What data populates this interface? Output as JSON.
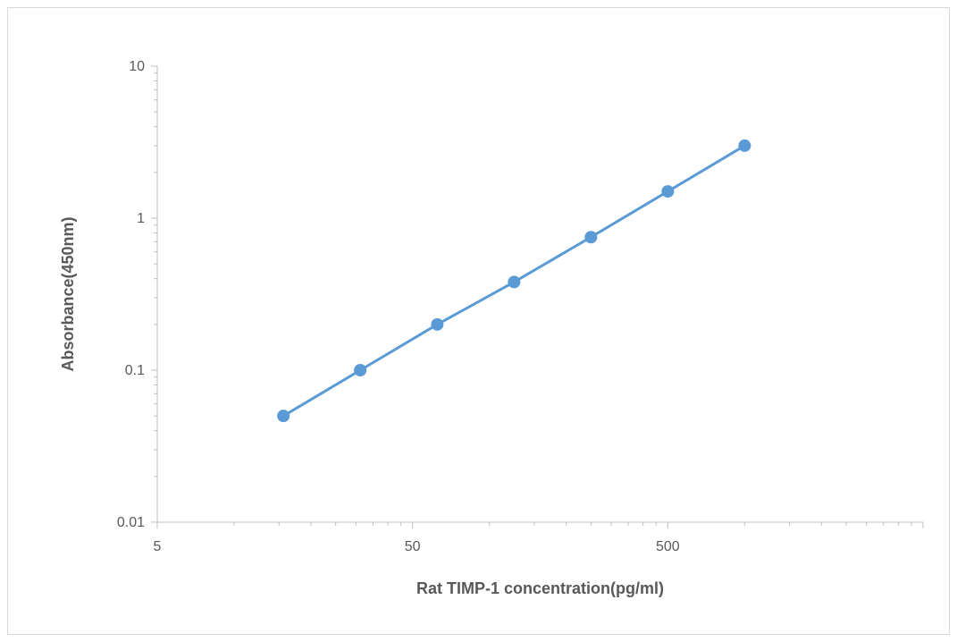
{
  "chart_data": {
    "type": "line",
    "xlabel": "Rat TIMP-1 concentration(pg/ml)",
    "ylabel": "Absorbance(450nm)",
    "x_scale": "log",
    "y_scale": "log",
    "xlim": [
      5,
      5000
    ],
    "ylim": [
      0.01,
      10
    ],
    "x_ticks": [
      5,
      50,
      500
    ],
    "x_tick_labels": [
      "5",
      "50",
      "500"
    ],
    "y_ticks": [
      0.01,
      0.1,
      1,
      10
    ],
    "y_tick_labels": [
      "0.01",
      "0.1",
      "1",
      "10"
    ],
    "grid": false,
    "legend": "none",
    "series": [
      {
        "color": "#5b9bd5",
        "x": [
          15.6,
          31.2,
          62.5,
          125,
          250,
          500,
          1000
        ],
        "y": [
          0.05,
          0.1,
          0.2,
          0.38,
          0.75,
          1.5,
          3.0
        ]
      }
    ]
  }
}
